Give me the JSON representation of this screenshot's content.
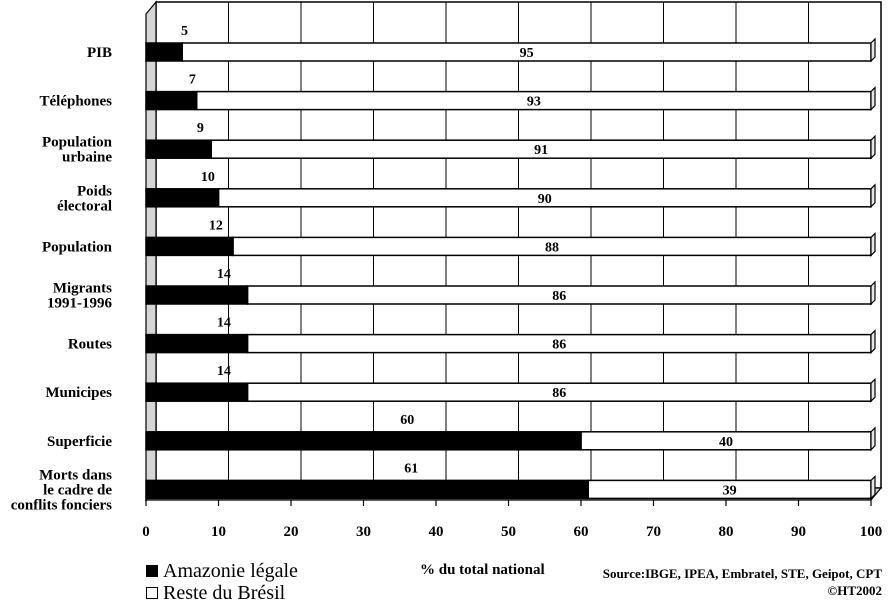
{
  "chart_data": {
    "type": "bar",
    "orientation": "horizontal",
    "stacked": true,
    "categories": [
      "PIB",
      "Téléphones",
      "Population urbaine",
      "Poids électoral",
      "Population",
      "Migrants 1991-1996",
      "Routes",
      "Municipes",
      "Superficie",
      "Morts dans le cadre de conflits fonciers"
    ],
    "category_lines": [
      [
        "PIB"
      ],
      [
        "Téléphones"
      ],
      [
        "Population",
        "urbaine"
      ],
      [
        "Poids",
        "électoral"
      ],
      [
        "Population"
      ],
      [
        "Migrants",
        "1991-1996"
      ],
      [
        "Routes"
      ],
      [
        "Municipes"
      ],
      [
        "Superficie"
      ],
      [
        "Morts dans",
        "le cadre de",
        "conflits fonciers"
      ]
    ],
    "series": [
      {
        "name": "Amazonie légale",
        "color": "#000000",
        "values": [
          5,
          7,
          9,
          10,
          12,
          14,
          14,
          14,
          60,
          61
        ]
      },
      {
        "name": "Reste du Brésil",
        "color": "#ffffff",
        "values": [
          95,
          93,
          91,
          90,
          88,
          86,
          86,
          86,
          40,
          39
        ]
      }
    ],
    "xlim": [
      0,
      100
    ],
    "xticks": [
      "0",
      "10",
      "20",
      "30",
      "40",
      "50",
      "60",
      "70",
      "80",
      "90",
      "100"
    ],
    "xlabel": "% du total national",
    "grid": true,
    "legend_position": "bottom-left"
  },
  "legend": {
    "items": [
      {
        "label": "Amazonie légale",
        "color": "#000000"
      },
      {
        "label": "Reste du Brésil",
        "color": "#ffffff"
      }
    ]
  },
  "source": {
    "line1": "Source:IBGE, IPEA, Embratel, STE, Geipot, CPT",
    "line2": "©HT2002"
  }
}
